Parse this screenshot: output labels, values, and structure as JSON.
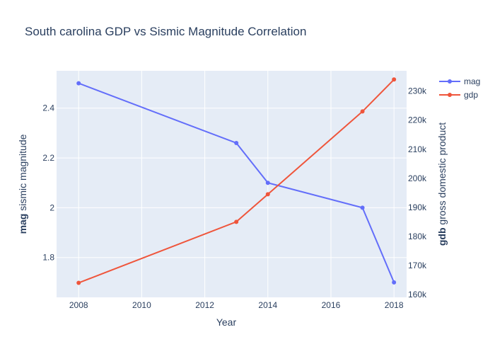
{
  "chart_data": {
    "type": "line",
    "title": "South carolina GDP vs Sismic Magnitude Correlation",
    "xlabel": "Year",
    "x": [
      2008,
      2013,
      2014,
      2017,
      2018
    ],
    "xlim": [
      2007.3,
      2018.4
    ],
    "xticks": [
      2008,
      2010,
      2012,
      2014,
      2016,
      2018
    ],
    "y1": {
      "label_bold": "mag",
      "label_rest": " sismic magnitude",
      "range": [
        1.64,
        2.55
      ],
      "ticks": [
        1.8,
        2.0,
        2.2,
        2.4
      ],
      "tick_labels": [
        "1.8",
        "2",
        "2.2",
        "2.4"
      ]
    },
    "y2": {
      "label_bold": "gdb",
      "label_rest": " gross domestic product",
      "range": [
        159000,
        237000
      ],
      "ticks": [
        160000,
        170000,
        180000,
        190000,
        200000,
        210000,
        220000,
        230000
      ],
      "tick_labels": [
        "160k",
        "170k",
        "180k",
        "190k",
        "200k",
        "210k",
        "220k",
        "230k"
      ]
    },
    "series": [
      {
        "name": "mag",
        "axis": "y1",
        "color": "#636efa",
        "values": [
          2.5,
          2.26,
          2.1,
          2.0,
          1.7
        ]
      },
      {
        "name": "gdp",
        "axis": "y2",
        "color": "#ef553b",
        "values": [
          164000,
          185000,
          194500,
          223000,
          234000
        ]
      }
    ],
    "legend_position": "top-right",
    "grid": true
  }
}
